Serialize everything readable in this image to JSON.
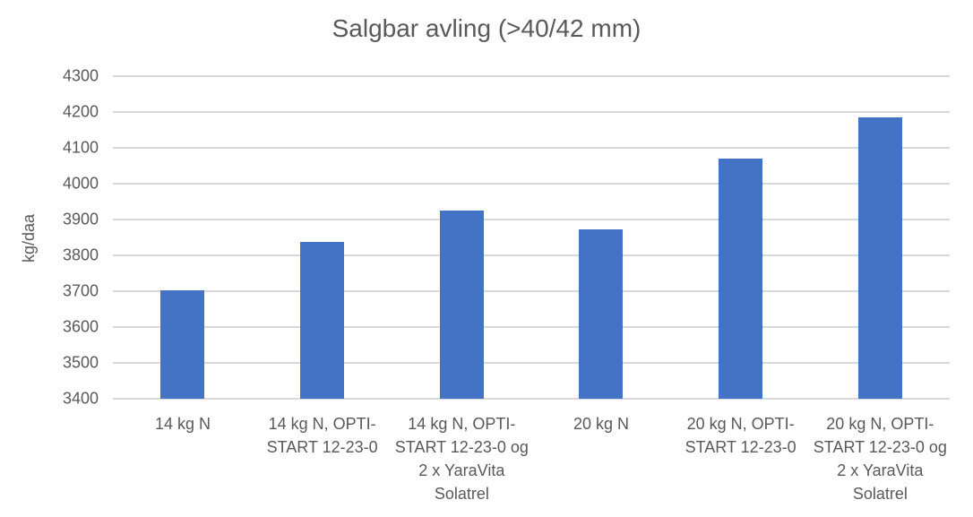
{
  "chart_data": {
    "type": "bar",
    "title": "Salgbar avling (>40/42 mm)",
    "xlabel": "",
    "ylabel": "kg/daa",
    "ylim": [
      3400,
      4300
    ],
    "yticks": [
      4300,
      4200,
      4100,
      4000,
      3900,
      3800,
      3700,
      3600,
      3500,
      3400
    ],
    "grid": true,
    "legend": null,
    "categories": [
      "14 kg N",
      "14 kg N, OPTI-START 12-23-0",
      "14 kg N, OPTI-START 12-23-0 og 2 x YaraVita Solatrel",
      "20 kg N",
      "20 kg N, OPTI-START 12-23-0",
      "20 kg N, OPTI-START 12-23-0 og 2 x YaraVita Solatrel"
    ],
    "category_lines": [
      "14 kg N",
      "14 kg N, OPTI-\nSTART 12-23-0",
      "14 kg N, OPTI-\nSTART 12-23-0 og\n2 x YaraVita\nSolatrel",
      "20 kg N",
      "20 kg N, OPTI-\nSTART 12-23-0",
      "20 kg N, OPTI-\nSTART 12-23-0 og\n2 x YaraVita\nSolatrel"
    ],
    "values": [
      3702,
      3838,
      3925,
      3873,
      4069,
      4184
    ],
    "bar_color": "#4472c4"
  }
}
